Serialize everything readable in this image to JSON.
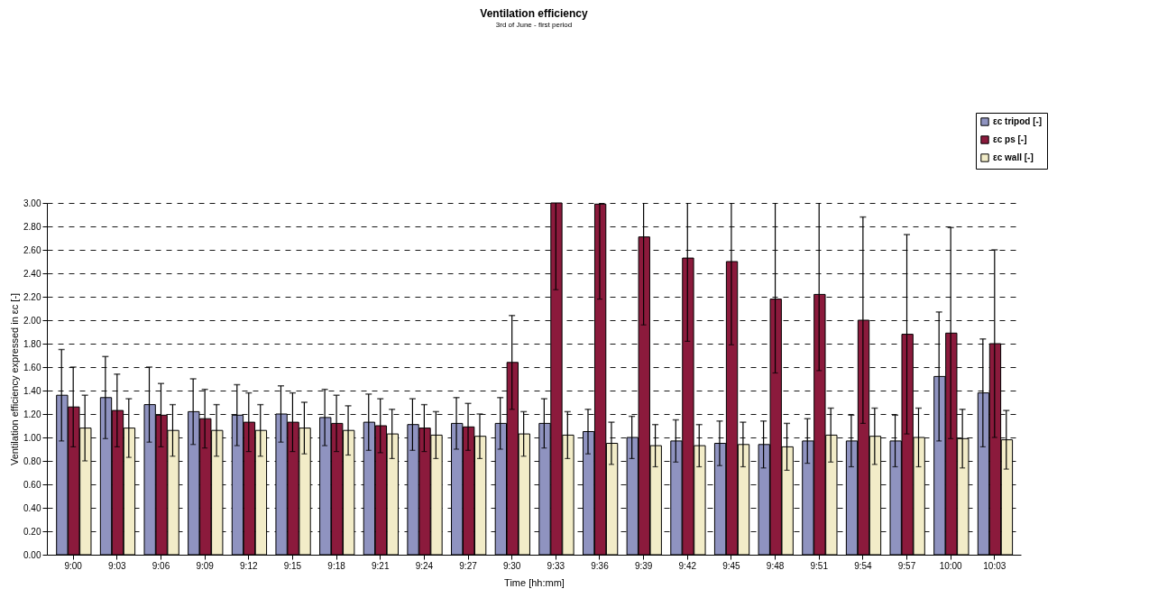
{
  "chart_data": {
    "type": "bar",
    "title": "Ventilation efficiency",
    "subtitle": "3rd of June - first period",
    "xlabel": "Time [hh:mm]",
    "ylabel": "Ventilation efficiency expressed in εc [-]",
    "categories": [
      "9:00",
      "9:03",
      "9:06",
      "9:09",
      "9:12",
      "9:15",
      "9:18",
      "9:21",
      "9:24",
      "9:27",
      "9:30",
      "9:33",
      "9:36",
      "9:39",
      "9:42",
      "9:45",
      "9:48",
      "9:51",
      "9:54",
      "9:57",
      "10:00",
      "10:03"
    ],
    "series": [
      {
        "name": "εc tripod [-]",
        "color": "#8f93c0",
        "values": [
          1.36,
          1.34,
          1.28,
          1.22,
          1.19,
          1.2,
          1.17,
          1.13,
          1.11,
          1.12,
          1.12,
          1.12,
          1.05,
          1.0,
          0.97,
          0.95,
          0.94,
          0.97,
          0.97,
          0.97,
          1.52,
          1.38
        ],
        "errors": [
          0.39,
          0.35,
          0.32,
          0.28,
          0.26,
          0.24,
          0.24,
          0.24,
          0.22,
          0.22,
          0.22,
          0.21,
          0.19,
          0.18,
          0.18,
          0.19,
          0.2,
          0.19,
          0.22,
          0.22,
          0.55,
          0.46
        ]
      },
      {
        "name": "εc ps [-]",
        "color": "#8b1a3c",
        "values": [
          1.26,
          1.23,
          1.19,
          1.16,
          1.13,
          1.13,
          1.12,
          1.1,
          1.08,
          1.09,
          1.64,
          3.0,
          2.99,
          2.71,
          2.53,
          2.5,
          2.18,
          2.22,
          2.0,
          1.88,
          1.89,
          1.8
        ],
        "errors": [
          0.34,
          0.31,
          0.27,
          0.25,
          0.25,
          0.25,
          0.24,
          0.23,
          0.2,
          0.2,
          0.4,
          [
            2.26,
            3.0
          ],
          [
            2.18,
            3.0
          ],
          [
            1.96,
            3.0
          ],
          [
            1.82,
            3.0
          ],
          [
            1.79,
            3.0
          ],
          [
            1.55,
            3.0
          ],
          [
            1.57,
            3.0
          ],
          0.88,
          0.85,
          0.9,
          0.8
        ]
      },
      {
        "name": "εc wall [-]",
        "color": "#f2ecc8",
        "values": [
          1.08,
          1.08,
          1.06,
          1.06,
          1.06,
          1.08,
          1.06,
          1.03,
          1.02,
          1.01,
          1.03,
          1.02,
          0.95,
          0.93,
          0.93,
          0.94,
          0.92,
          1.02,
          1.01,
          1.0,
          0.99,
          0.98
        ],
        "errors": [
          0.28,
          0.25,
          0.22,
          0.22,
          0.22,
          0.22,
          0.21,
          0.21,
          0.2,
          0.19,
          0.19,
          0.2,
          0.18,
          0.18,
          0.18,
          0.19,
          0.2,
          0.23,
          0.24,
          0.25,
          0.25,
          0.25
        ]
      }
    ],
    "ylim": [
      0,
      3.0
    ],
    "yticks": [
      {
        "value": 0,
        "label": "0.00"
      },
      {
        "value": 0.2,
        "label": "0.20"
      },
      {
        "value": 0.4,
        "label": "0.40"
      },
      {
        "value": 0.6,
        "label": "0.60"
      },
      {
        "value": 0.8,
        "label": "0.80"
      },
      {
        "value": 1.0,
        "label": "1.00"
      },
      {
        "value": 1.2,
        "label": "1.20"
      },
      {
        "value": 1.4,
        "label": "1.40"
      },
      {
        "value": 1.6,
        "label": "1.60"
      },
      {
        "value": 1.8,
        "label": "1.80"
      },
      {
        "value": 2.0,
        "label": "2.00"
      },
      {
        "value": 2.2,
        "label": "2.20"
      },
      {
        "value": 2.4,
        "label": "2.40"
      },
      {
        "value": 2.6,
        "label": "2.60"
      },
      {
        "value": 2.8,
        "label": "2.80"
      },
      {
        "value": 3.0,
        "label": "3.00"
      }
    ],
    "grid": "y",
    "legend": "top right"
  }
}
